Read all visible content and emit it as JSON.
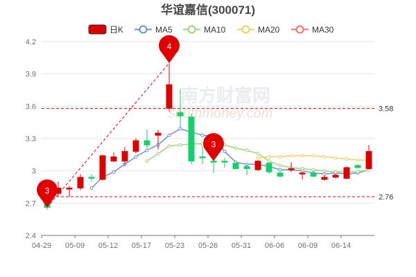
{
  "chart_data": {
    "type": "candlestick",
    "title": "华谊嘉信(300071)",
    "ylim": [
      2.4,
      4.2
    ],
    "yticks": [
      "2.4",
      "2.7",
      "3",
      "3.3",
      "3.6",
      "3.9",
      "4.2"
    ],
    "xticks": [
      "04-29",
      "05-09",
      "05-12",
      "05-17",
      "05-23",
      "05-26",
      "05-31",
      "06-06",
      "06-09",
      "06-14"
    ],
    "grid": true,
    "legend": {
      "position": "top",
      "items": [
        {
          "name": "日K",
          "color": "#dd0000",
          "kind": "candle"
        },
        {
          "name": "MA5",
          "color": "#6a8fd6",
          "kind": "line"
        },
        {
          "name": "MA10",
          "color": "#9fd27a",
          "kind": "line"
        },
        {
          "name": "MA20",
          "color": "#f5cd64",
          "kind": "line"
        },
        {
          "name": "MA30",
          "color": "#f07070",
          "kind": "line"
        }
      ]
    },
    "candles": [
      {
        "o": 2.79,
        "c": 2.66,
        "h": 2.84,
        "l": 2.64
      },
      {
        "o": 2.79,
        "c": 2.84,
        "h": 2.9,
        "l": 2.77
      },
      {
        "o": 2.83,
        "c": 2.84,
        "h": 2.86,
        "l": 2.76
      },
      {
        "o": 2.84,
        "c": 2.94,
        "h": 2.97,
        "l": 2.82
      },
      {
        "o": 2.94,
        "c": 2.93,
        "h": 2.97,
        "l": 2.9
      },
      {
        "o": 2.92,
        "c": 3.14,
        "h": 3.15,
        "l": 2.91
      },
      {
        "o": 3.09,
        "c": 3.13,
        "h": 3.17,
        "l": 3.08
      },
      {
        "o": 3.09,
        "c": 3.18,
        "h": 3.22,
        "l": 3.05
      },
      {
        "o": 3.18,
        "c": 3.28,
        "h": 3.3,
        "l": 3.16
      },
      {
        "o": 3.28,
        "c": 3.24,
        "h": 3.38,
        "l": 3.21
      },
      {
        "o": 3.33,
        "c": 3.35,
        "h": 3.38,
        "l": 3.2
      },
      {
        "o": 3.58,
        "c": 3.8,
        "h": 4.0,
        "l": 3.55
      },
      {
        "o": 3.54,
        "c": 3.51,
        "h": 3.76,
        "l": 3.4
      },
      {
        "o": 3.5,
        "c": 3.09,
        "h": 3.53,
        "l": 3.06
      },
      {
        "o": 3.13,
        "c": 3.12,
        "h": 3.23,
        "l": 3.06
      },
      {
        "o": 3.09,
        "c": 3.08,
        "h": 3.2,
        "l": 2.98
      },
      {
        "o": 3.09,
        "c": 3.08,
        "h": 3.12,
        "l": 3.03
      },
      {
        "o": 3.07,
        "c": 3.02,
        "h": 3.08,
        "l": 3.01
      },
      {
        "o": 3.04,
        "c": 3.02,
        "h": 3.06,
        "l": 2.96
      },
      {
        "o": 3.01,
        "c": 3.09,
        "h": 3.1,
        "l": 3.0
      },
      {
        "o": 3.07,
        "c": 2.99,
        "h": 3.08,
        "l": 2.97
      },
      {
        "o": 2.98,
        "c": 2.95,
        "h": 3.0,
        "l": 2.94
      },
      {
        "o": 3.01,
        "c": 3.02,
        "h": 3.08,
        "l": 2.99
      },
      {
        "o": 2.97,
        "c": 2.98,
        "h": 2.99,
        "l": 2.92
      },
      {
        "o": 2.98,
        "c": 2.95,
        "h": 2.99,
        "l": 2.94
      },
      {
        "o": 2.92,
        "c": 2.94,
        "h": 2.96,
        "l": 2.91
      },
      {
        "o": 2.94,
        "c": 2.96,
        "h": 2.97,
        "l": 2.93
      },
      {
        "o": 2.93,
        "c": 3.03,
        "h": 3.04,
        "l": 2.92
      },
      {
        "o": 3.05,
        "c": 3.03,
        "h": 3.06,
        "l": 3.02
      },
      {
        "o": 3.02,
        "c": 3.18,
        "h": 3.24,
        "l": 3.01
      }
    ],
    "ma5": [
      null,
      null,
      null,
      null,
      2.84,
      2.94,
      2.99,
      3.06,
      3.13,
      3.19,
      3.24,
      3.33,
      3.39,
      3.36,
      3.33,
      3.32,
      3.18,
      3.08,
      3.06,
      3.06,
      3.04,
      3.01,
      3.01,
      3.0,
      2.98,
      2.97,
      2.98,
      2.97,
      2.98,
      3.01
    ],
    "ma10": [
      null,
      null,
      null,
      null,
      null,
      null,
      null,
      null,
      null,
      3.09,
      3.16,
      3.23,
      3.24,
      3.25,
      3.25,
      3.26,
      3.24,
      3.21,
      3.19,
      3.16,
      3.09,
      3.05,
      3.03,
      3.02,
      3.01,
      3.0,
      2.99,
      2.99,
      2.99,
      3.01
    ],
    "ma20": [
      null,
      null,
      null,
      null,
      null,
      null,
      null,
      null,
      null,
      null,
      null,
      null,
      null,
      null,
      null,
      null,
      null,
      null,
      null,
      3.12,
      3.13,
      3.13,
      3.14,
      3.14,
      3.14,
      3.13,
      3.12,
      3.11,
      3.1,
      3.1
    ],
    "ref_lines": [
      {
        "value": 3.58,
        "label": "3.58"
      },
      {
        "value": 2.76,
        "label": "2.76"
      }
    ],
    "markers": [
      {
        "index": 0,
        "value": 2.66,
        "label": "3"
      },
      {
        "index": 11,
        "value": 4.0,
        "label": "4"
      },
      {
        "index": 15,
        "value": 3.09,
        "label": "3"
      }
    ]
  },
  "colors": {
    "up": "#dd0000",
    "down": "#14d26b",
    "grid": "#e6e6e6",
    "ref": "#dd0000"
  },
  "watermark": {
    "cn": "南方财富网",
    "en": "southmoney.com"
  }
}
